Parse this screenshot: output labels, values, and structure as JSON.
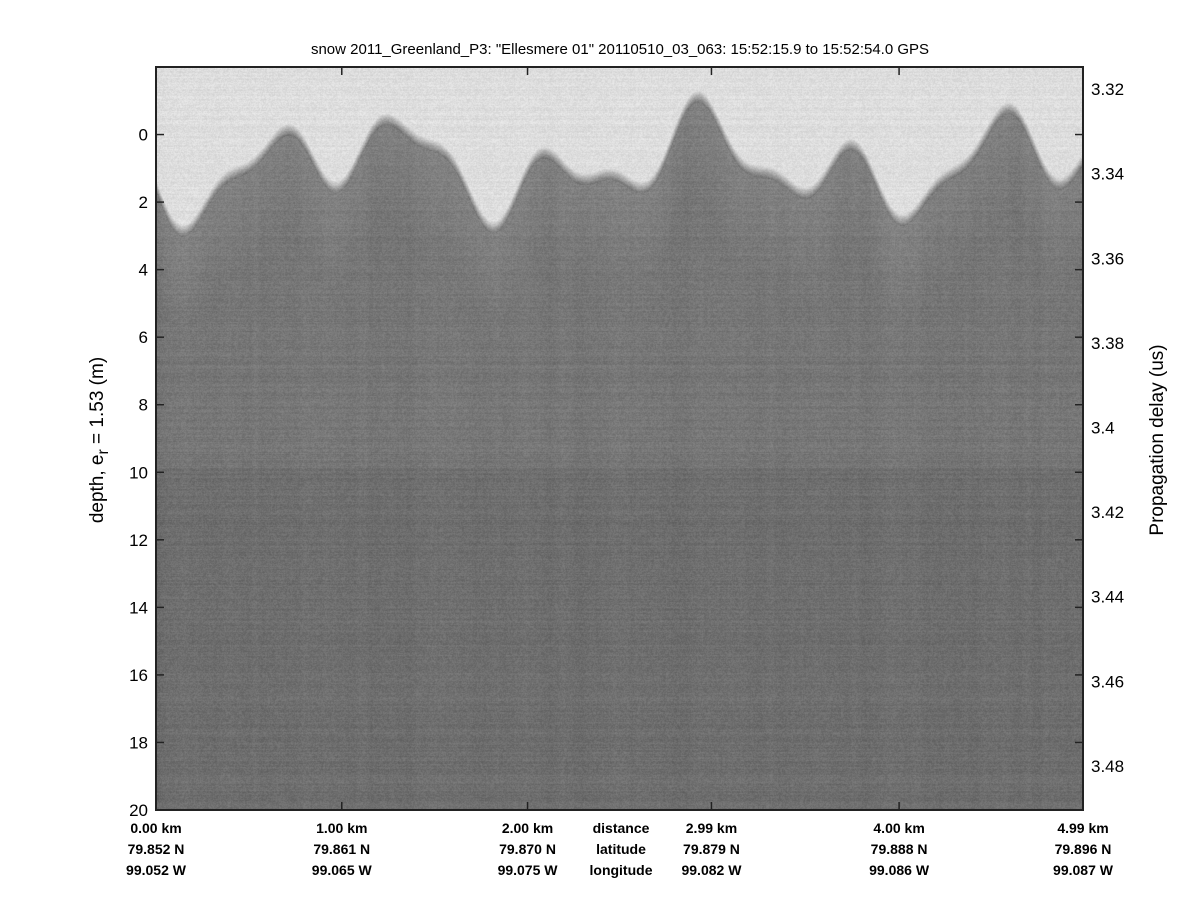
{
  "chart_data": {
    "type": "heatmap",
    "title": "snow 2011_Greenland_P3: \"Ellesmere 01\"  20110510_03_063: 15:52:15.9 to 15:52:54.0 GPS",
    "colormap": "gray",
    "ylabel": "depth, e",
    "ylabel_subscript": "r",
    "ylabel_suffix": " = 1.53 (m)",
    "ylim": [
      -2,
      20
    ],
    "yticks": [
      "0",
      "2",
      "4",
      "6",
      "8",
      "10",
      "12",
      "14",
      "16",
      "18",
      "20"
    ],
    "ytick_values": [
      0,
      2,
      4,
      6,
      8,
      10,
      12,
      14,
      16,
      18,
      20
    ],
    "y2label": "Propagation delay (us)",
    "y2ticks": [
      "3.32",
      "3.34",
      "3.36",
      "3.38",
      "3.4",
      "3.42",
      "3.44",
      "3.46",
      "3.48"
    ],
    "y2lim": [
      3.3148,
      3.4904
    ],
    "xlim_km": [
      0,
      4.99
    ],
    "xticks": [
      {
        "distance": "0.00 km",
        "latitude": "79.852 N",
        "longitude": "99.052 W",
        "km": 0
      },
      {
        "distance": "1.00 km",
        "latitude": "79.861 N",
        "longitude": "99.065 W",
        "km": 1.0
      },
      {
        "distance": "2.00 km",
        "latitude": "79.870 N",
        "longitude": "99.075 W",
        "km": 2.0
      },
      {
        "distance": "2.99 km",
        "latitude": "79.879 N",
        "longitude": "99.082 W",
        "km": 2.99
      },
      {
        "distance": "4.00 km",
        "latitude": "79.888 N",
        "longitude": "99.086 W",
        "km": 4.0
      },
      {
        "distance": "4.99 km",
        "latitude": "79.896 N",
        "longitude": "99.087 W",
        "km": 4.99
      }
    ],
    "row_labels": {
      "distance": "distance",
      "latitude": "latitude",
      "longitude": "longitude"
    },
    "grid": false
  }
}
